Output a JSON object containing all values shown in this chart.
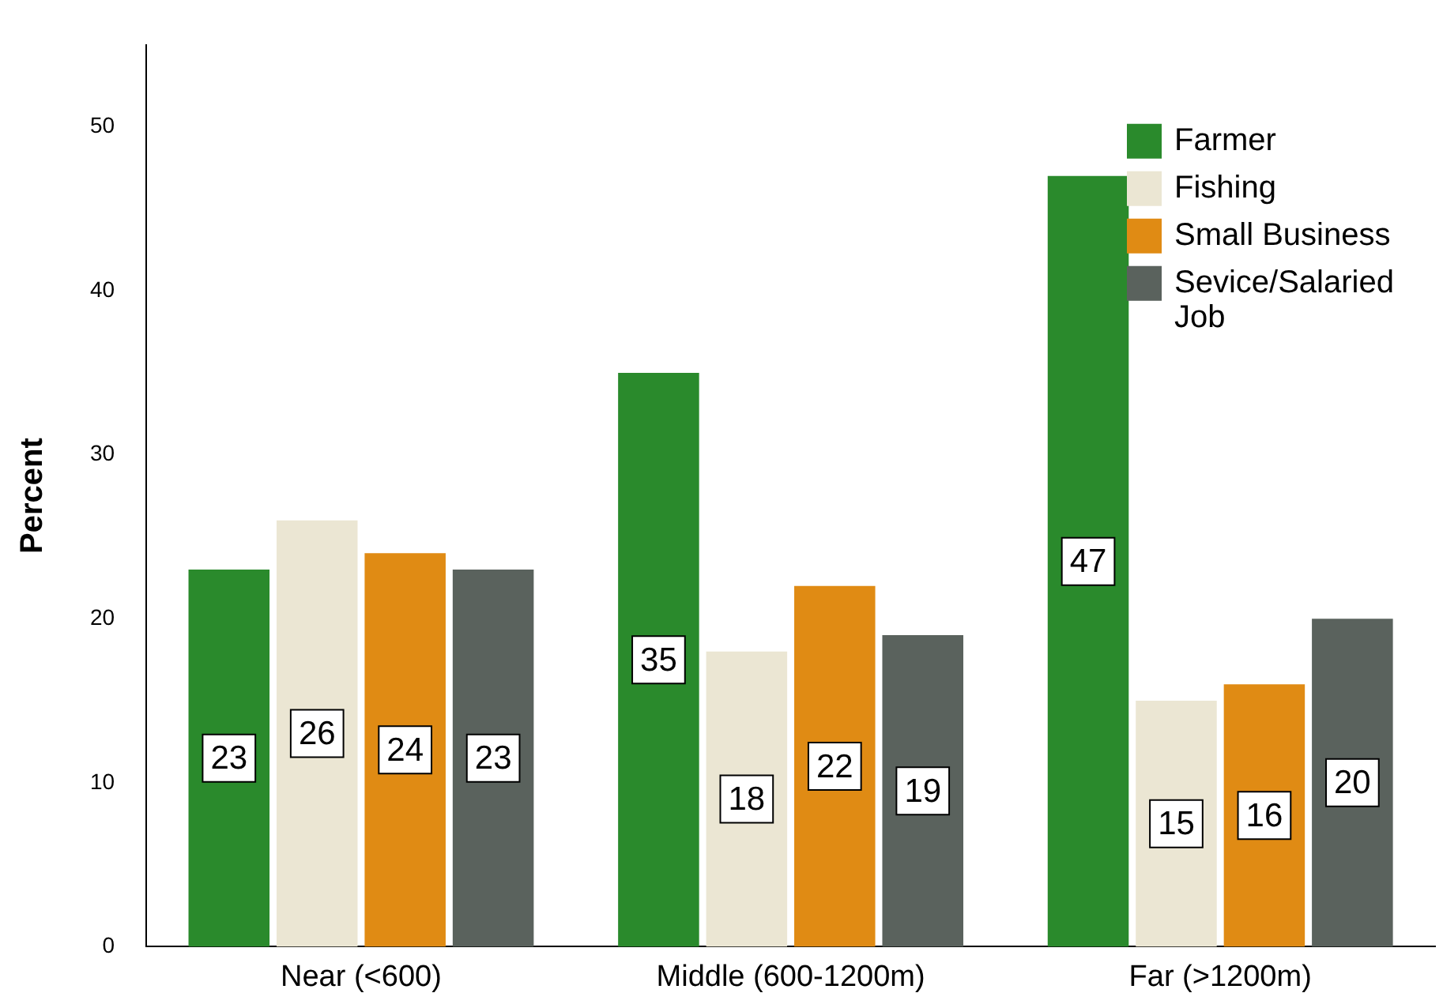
{
  "chart_data": {
    "type": "bar",
    "ylabel": "Percent",
    "categories": [
      "Near (<600)",
      "Middle (600-1200m)",
      "Far (>1200m)"
    ],
    "series": [
      {
        "name": "Farmer",
        "color": "#2a8a2c",
        "values": [
          23,
          35,
          47
        ]
      },
      {
        "name": "Fishing",
        "color": "#ebe6d3",
        "values": [
          26,
          18,
          15
        ]
      },
      {
        "name": "Small Business",
        "color": "#e08b14",
        "values": [
          24,
          22,
          16
        ]
      },
      {
        "name": "Sevice/Salaried Job",
        "color": "#5a625d",
        "values": [
          23,
          19,
          20
        ]
      }
    ],
    "ylim": [
      0,
      55
    ],
    "yticks": [
      0,
      10,
      20,
      30,
      40,
      50
    ],
    "grid": false,
    "legend": "top right",
    "data_labels": true
  }
}
